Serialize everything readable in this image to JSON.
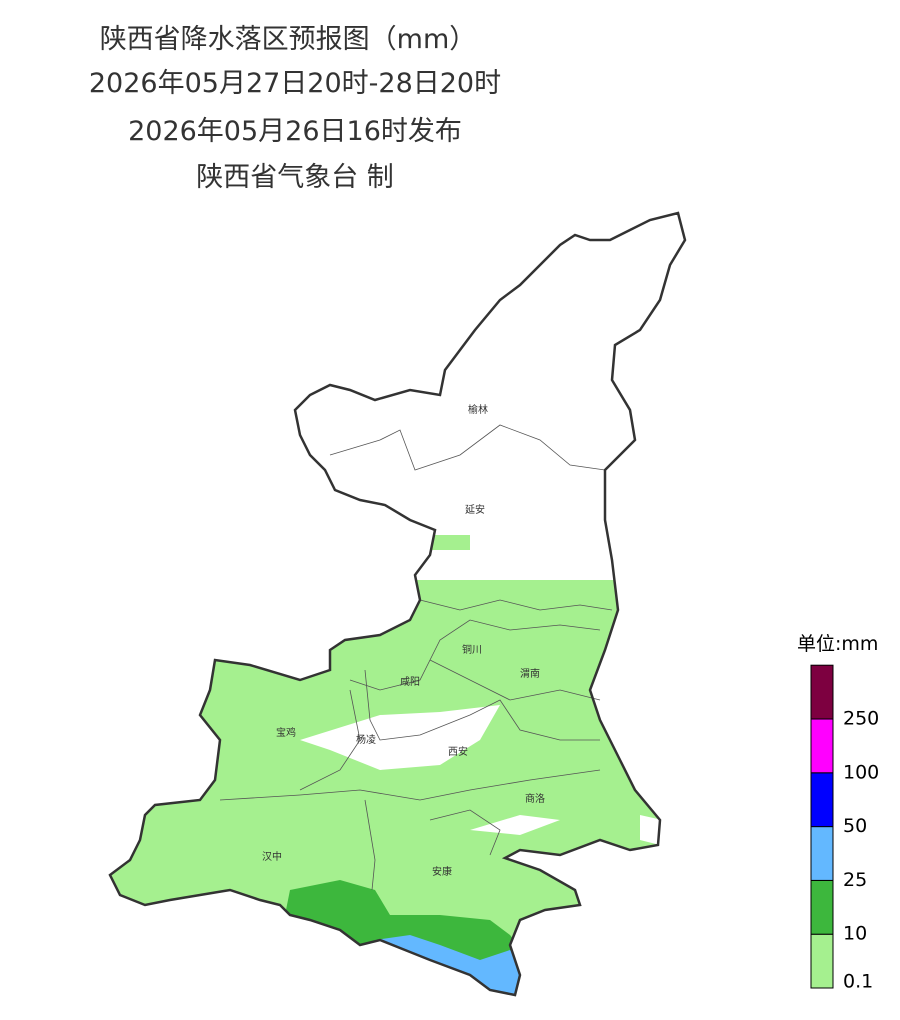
{
  "header": {
    "title": "陕西省降水落区预报图（mm）",
    "period": "2026年05月27日20时-28日20时",
    "issued": "2026年05月26日16时发布",
    "issuer": "陕西省气象台 制"
  },
  "cities": [
    {
      "label": "榆林"
    },
    {
      "label": "延安"
    },
    {
      "label": "铜川"
    },
    {
      "label": "渭南"
    },
    {
      "label": "咸阳"
    },
    {
      "label": "宝鸡"
    },
    {
      "label": "杨凌"
    },
    {
      "label": "西安"
    },
    {
      "label": "商洛"
    },
    {
      "label": "汉中"
    },
    {
      "label": "安康"
    }
  ],
  "legend": {
    "title": "单位:mm",
    "colors": [
      "#a5f08f",
      "#3db73d",
      "#63b8ff",
      "#0000ff",
      "#ff00ff",
      "#7d0040"
    ],
    "labels": [
      "0.1",
      "10",
      "25",
      "50",
      "100",
      "250"
    ]
  }
}
